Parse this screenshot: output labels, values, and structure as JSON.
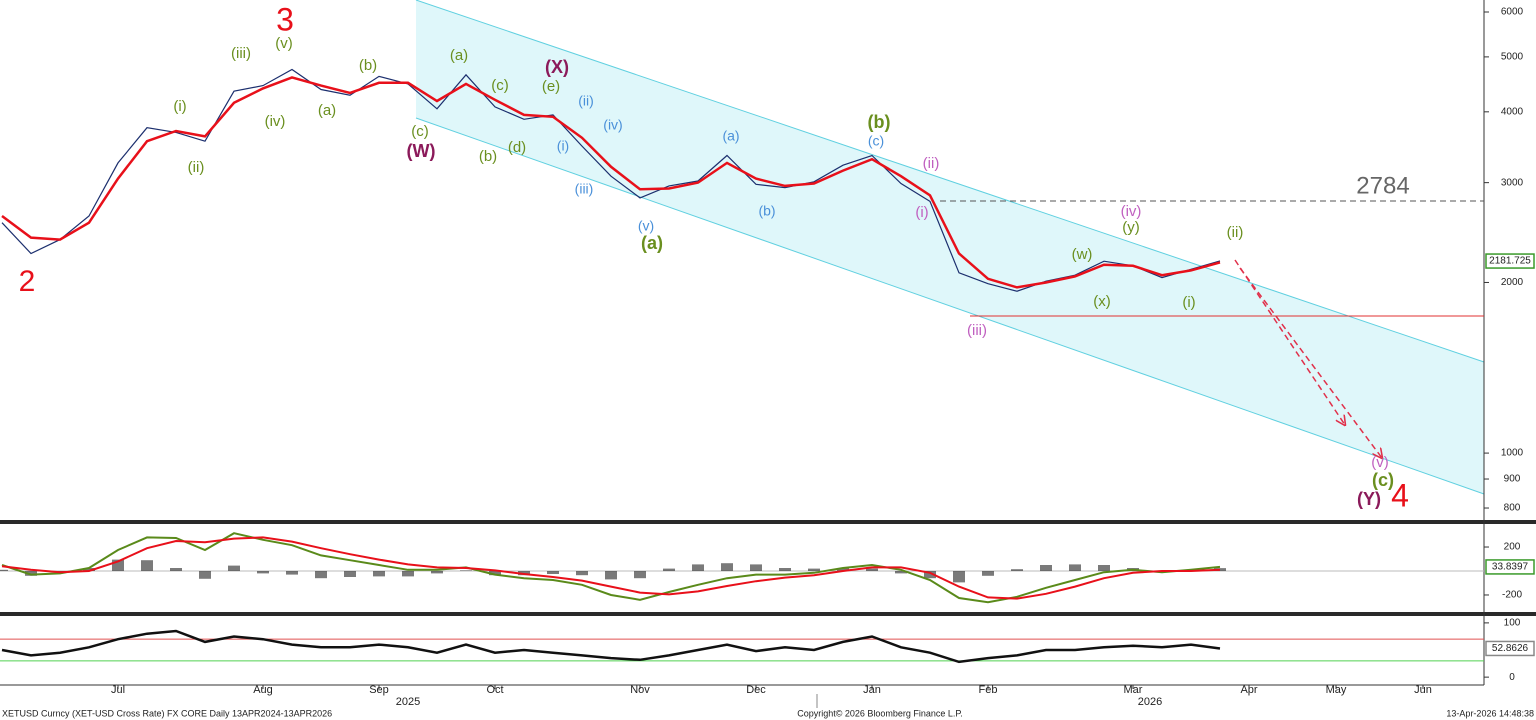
{
  "chart_data": [
    {
      "type": "price",
      "log_scale": true,
      "categories": [
        null,
        null,
        null,
        null,
        "Jul",
        null,
        null,
        null,
        null,
        "Aug",
        null,
        null,
        null,
        "Sep",
        null,
        null,
        null,
        "Oct",
        null,
        null,
        null,
        null,
        "Nov",
        null,
        null,
        null,
        "Dec",
        null,
        null,
        null,
        "Jan",
        null,
        null,
        null,
        "Feb",
        null,
        null,
        null,
        null,
        "Mar",
        null,
        null,
        null,
        "Apr",
        null,
        null,
        "May",
        null,
        null,
        "Jun",
        null
      ],
      "series": [
        {
          "color": "#1c2f6e",
          "values": [
            2550,
            2250,
            2380,
            2620,
            3250,
            3750,
            3680,
            3550,
            4350,
            4450,
            4750,
            4380,
            4280,
            4620,
            4480,
            4050,
            4650,
            4080,
            3880,
            3950,
            3480,
            3080,
            2820,
            2960,
            3020,
            3350,
            2980,
            2940,
            3010,
            3220,
            3350,
            2990,
            2780,
            2080,
            1990,
            1930,
            2010,
            2060,
            2180,
            2140,
            2040,
            2110,
            2181.725,
            null,
            null,
            null,
            null,
            null,
            null,
            null,
            null
          ]
        },
        {
          "color": "#e8101a",
          "values": [
            2620,
            2400,
            2380,
            2550,
            3050,
            3550,
            3700,
            3620,
            4150,
            4400,
            4600,
            4450,
            4320,
            4500,
            4500,
            4180,
            4480,
            4200,
            3950,
            3920,
            3600,
            3200,
            2920,
            2930,
            3000,
            3250,
            3050,
            2960,
            2990,
            3150,
            3300,
            3080,
            2850,
            2250,
            2030,
            1960,
            2000,
            2050,
            2150,
            2140,
            2060,
            2100,
            2170,
            null,
            null,
            null,
            null,
            null,
            null,
            null,
            null
          ]
        }
      ],
      "ylim": [
        762,
        6300
      ],
      "yticks": [
        800,
        900,
        1000,
        2000,
        3000,
        4000,
        5000,
        6000
      ],
      "level": {
        "value": 2784,
        "label": "2784"
      },
      "support": 1745,
      "last_value": 2181.725,
      "annotations": [
        {
          "text": "2",
          "color": "#e8101a"
        },
        {
          "text": "3",
          "color": "#e8101a"
        },
        {
          "text": "4",
          "color": "#e8101a"
        },
        {
          "text": "(i)",
          "color": "#6a8f1f"
        },
        {
          "text": "(ii)",
          "color": "#6a8f1f"
        },
        {
          "text": "(iii)",
          "color": "#6a8f1f"
        },
        {
          "text": "(iv)",
          "color": "#6a8f1f"
        },
        {
          "text": "(v)",
          "color": "#6a8f1f"
        },
        {
          "text": "(a)",
          "color": "#6a8f1f"
        },
        {
          "text": "(b)",
          "color": "#6a8f1f"
        },
        {
          "text": "(c)",
          "color": "#6a8f1f"
        },
        {
          "text": "(W)",
          "color": "#8b1a5a"
        },
        {
          "text": "(a)",
          "color": "#6a8f1f"
        },
        {
          "text": "(b)",
          "color": "#6a8f1f"
        },
        {
          "text": "(c)",
          "color": "#6a8f1f"
        },
        {
          "text": "(d)",
          "color": "#6a8f1f"
        },
        {
          "text": "(X)",
          "color": "#8b1a5a"
        },
        {
          "text": "(e)",
          "color": "#6a8f1f"
        },
        {
          "text": "(ii)",
          "color": "#4a90d9"
        },
        {
          "text": "(i)",
          "color": "#4a90d9"
        },
        {
          "text": "(iv)",
          "color": "#4a90d9"
        },
        {
          "text": "(iii)",
          "color": "#4a90d9"
        },
        {
          "text": "(v)",
          "color": "#4a90d9"
        },
        {
          "text": "(a)",
          "color": "#6a8f1f"
        },
        {
          "text": "(a)",
          "color": "#4a90d9"
        },
        {
          "text": "(b)",
          "color": "#4a90d9"
        },
        {
          "text": "(b)",
          "color": "#6a8f1f"
        },
        {
          "text": "(c)",
          "color": "#4a90d9"
        },
        {
          "text": "(ii)",
          "color": "#c060c0"
        },
        {
          "text": "(i)",
          "color": "#c060c0"
        },
        {
          "text": "(iii)",
          "color": "#c060c0"
        },
        {
          "text": "(w)",
          "color": "#6a8f1f"
        },
        {
          "text": "(x)",
          "color": "#6a8f1f"
        },
        {
          "text": "(iv)",
          "color": "#c060c0"
        },
        {
          "text": "(y)",
          "color": "#6a8f1f"
        },
        {
          "text": "(i)",
          "color": "#6a8f1f"
        },
        {
          "text": "(ii)",
          "color": "#6a8f1f"
        },
        {
          "text": "(v)",
          "color": "#c060c0"
        },
        {
          "text": "(c)",
          "color": "#6a8f1f"
        },
        {
          "text": "(Y)",
          "color": "#8b1a5a"
        }
      ]
    },
    {
      "type": "macd",
      "series": [
        {
          "color": "#5a8a1a",
          "values": [
            50,
            -30,
            -20,
            25,
            175,
            280,
            275,
            175,
            315,
            260,
            215,
            130,
            90,
            50,
            10,
            10,
            30,
            -30,
            -60,
            -75,
            -115,
            -200,
            -240,
            -175,
            -115,
            -60,
            -30,
            -30,
            -15,
            25,
            50,
            10,
            -75,
            -225,
            -260,
            -215,
            -140,
            -75,
            -10,
            10,
            -10,
            10,
            33.8397,
            null,
            null,
            null,
            null,
            null,
            null,
            null,
            null
          ]
        },
        {
          "color": "#e8101a",
          "values": [
            40,
            10,
            -10,
            0,
            80,
            190,
            250,
            240,
            270,
            280,
            245,
            190,
            140,
            95,
            55,
            30,
            25,
            5,
            -25,
            -50,
            -80,
            -130,
            -180,
            -195,
            -170,
            -125,
            -85,
            -55,
            -35,
            0,
            30,
            30,
            -15,
            -130,
            -220,
            -230,
            -190,
            -130,
            -60,
            -15,
            0,
            0,
            10,
            null,
            null,
            null,
            null,
            null,
            null,
            null,
            null
          ]
        }
      ],
      "histogram": [
        10,
        -40,
        -10,
        25,
        95,
        90,
        25,
        -65,
        45,
        -20,
        -30,
        -60,
        -50,
        -45,
        -45,
        -20,
        5,
        -35,
        -35,
        -25,
        -35,
        -70,
        -60,
        20,
        55,
        65,
        55,
        25,
        20,
        25,
        20,
        -20,
        -60,
        -95,
        -40,
        15,
        50,
        55,
        50,
        25,
        -10,
        10,
        24,
        null,
        null,
        null,
        null,
        null,
        null,
        null,
        null
      ],
      "ylim": [
        -342,
        392
      ],
      "yticks": [
        -200,
        200
      ],
      "last_value": 33.8397
    },
    {
      "type": "rsi",
      "series": [
        {
          "color": "#111111",
          "values": [
            50,
            40,
            45,
            55,
            70,
            80,
            85,
            65,
            75,
            70,
            60,
            55,
            55,
            60,
            55,
            45,
            60,
            45,
            50,
            45,
            40,
            35,
            32,
            40,
            50,
            60,
            48,
            55,
            50,
            65,
            75,
            55,
            45,
            28,
            35,
            40,
            50,
            50,
            55,
            58,
            55,
            60,
            52.8626,
            null,
            null,
            null,
            null,
            null,
            null,
            null,
            null
          ]
        }
      ],
      "levels": [
        {
          "value": 70,
          "color": "#e05050"
        },
        {
          "value": 30,
          "color": "#50d050"
        }
      ],
      "ylim": [
        -14.5,
        112.7
      ],
      "yticks": [
        0,
        100
      ],
      "last_value": 52.8626
    }
  ],
  "axis_years": [
    "2025",
    "2026"
  ],
  "footer": {
    "left": "XETUSD Curncy (XET-USD Cross Rate) FX CORE Daily 13APR2024-13APR2026",
    "center": "Copyright© 2026 Bloomberg Finance L.P.",
    "right": "13-Apr-2026 14:48:38"
  }
}
